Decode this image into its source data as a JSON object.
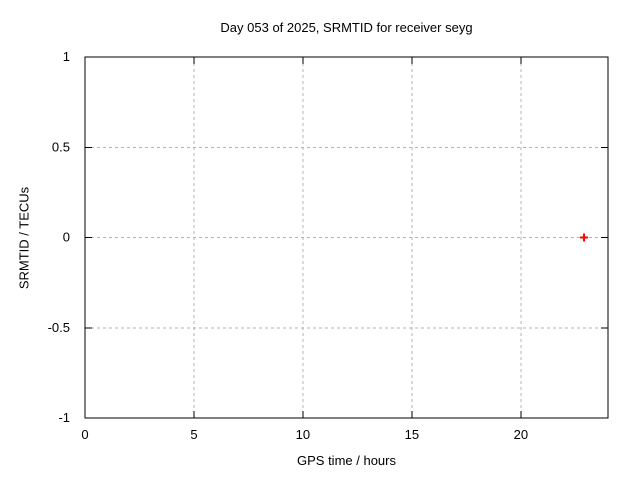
{
  "chart_data": {
    "type": "scatter",
    "title": "Day 053 of 2025, SRMTID for receiver seyg",
    "xlabel": "GPS time / hours",
    "ylabel": "SRMTID / TECUs",
    "xlim": [
      0,
      24
    ],
    "ylim": [
      -1,
      1
    ],
    "xticks": [
      0,
      5,
      10,
      15,
      20
    ],
    "yticks": [
      -1,
      -0.5,
      0,
      0.5,
      1
    ],
    "grid": true,
    "legend_position": "none",
    "series": [
      {
        "name": "SRMTID",
        "marker": "plus",
        "color": "#ff0000",
        "points": [
          {
            "x": 22.9,
            "y": 0.0
          }
        ]
      }
    ],
    "colors": {
      "background": "#ffffff",
      "border": "#000000",
      "grid": "#b3b3b3",
      "text": "#000000",
      "marker": "#ff0000"
    }
  }
}
